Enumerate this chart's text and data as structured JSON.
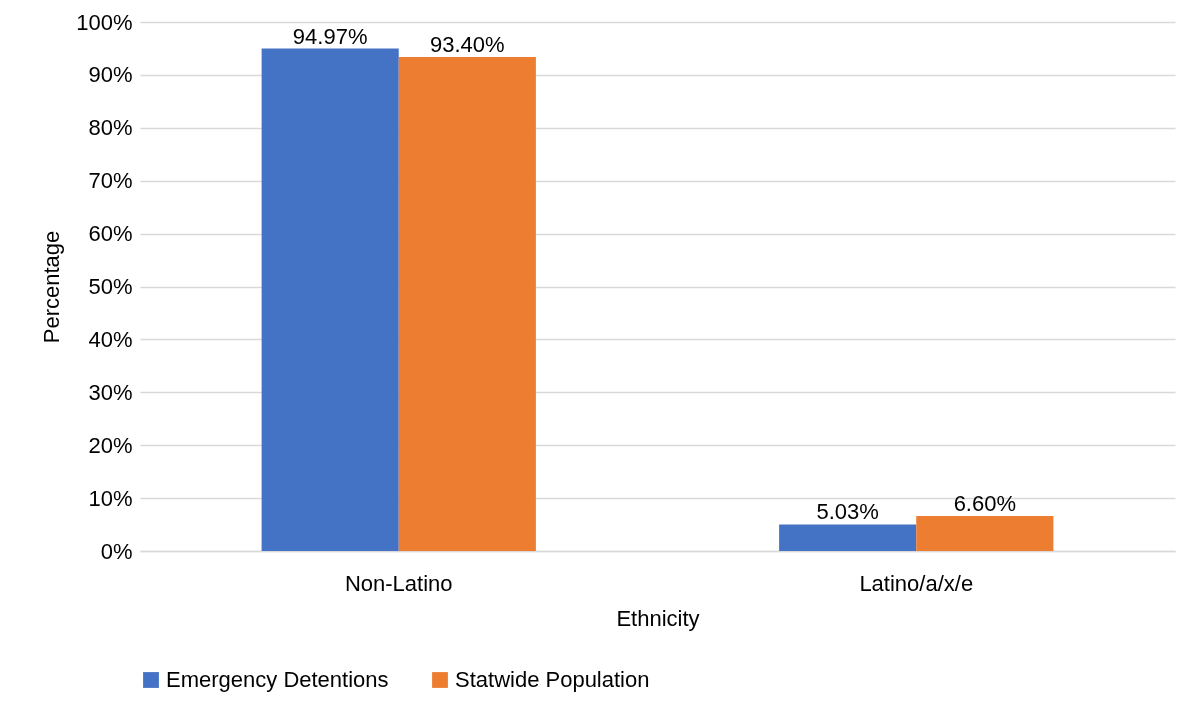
{
  "chart_data": {
    "type": "bar",
    "xlabel": "Ethnicity",
    "ylabel": "Percentage",
    "categories": [
      "Non-Latino",
      "Latino/a/x/e"
    ],
    "series": [
      {
        "name": "Emergency Detentions",
        "color": "#4472c4",
        "values": [
          94.97,
          5.03
        ],
        "value_labels": [
          "94.97%",
          "5.03%"
        ]
      },
      {
        "name": "Statwide Population",
        "color": "#ed7d31",
        "values": [
          93.4,
          6.6
        ],
        "value_labels": [
          "93.40%",
          "6.60%"
        ]
      }
    ],
    "ylim": [
      0,
      100
    ],
    "yticks": [
      {
        "value": 0,
        "label": "0%"
      },
      {
        "value": 10,
        "label": "10%"
      },
      {
        "value": 20,
        "label": "20%"
      },
      {
        "value": 30,
        "label": "30%"
      },
      {
        "value": 40,
        "label": "40%"
      },
      {
        "value": 50,
        "label": "50%"
      },
      {
        "value": 60,
        "label": "60%"
      },
      {
        "value": 70,
        "label": "70%"
      },
      {
        "value": 80,
        "label": "80%"
      },
      {
        "value": 90,
        "label": "90%"
      },
      {
        "value": 100,
        "label": "100%"
      }
    ],
    "grid": "y",
    "legend": "bottom"
  }
}
